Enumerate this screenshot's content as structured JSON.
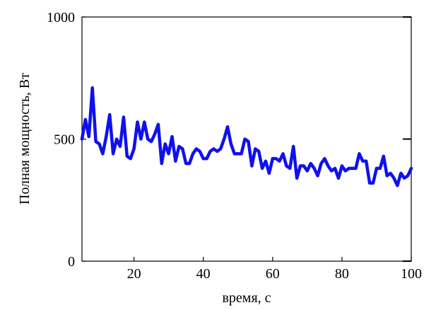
{
  "chart_data": {
    "type": "line",
    "xlabel": "время, с",
    "ylabel": "Полная мощность, Вт",
    "xlim": [
      5,
      100
    ],
    "ylim": [
      0,
      1000
    ],
    "x_ticks": [
      20,
      40,
      60,
      80,
      100
    ],
    "y_ticks": [
      0,
      500,
      1000
    ],
    "x_tick_labels": [
      "20",
      "40",
      "60",
      "80",
      "100"
    ],
    "y_tick_labels": [
      "0",
      "500",
      "1000"
    ],
    "grid": false,
    "series": [
      {
        "color": "#1010ee",
        "x": [
          5,
          6,
          7,
          8,
          9,
          10,
          11,
          12,
          13,
          14,
          15,
          16,
          17,
          18,
          19,
          20,
          21,
          22,
          23,
          24,
          25,
          26,
          27,
          28,
          29,
          30,
          31,
          32,
          33,
          34,
          35,
          36,
          37,
          38,
          39,
          40,
          41,
          42,
          43,
          44,
          45,
          46,
          47,
          48,
          49,
          50,
          51,
          52,
          53,
          54,
          55,
          56,
          57,
          58,
          59,
          60,
          61,
          62,
          63,
          64,
          65,
          66,
          67,
          68,
          69,
          70,
          71,
          72,
          73,
          74,
          75,
          76,
          77,
          78,
          79,
          80,
          81,
          82,
          83,
          84,
          85,
          86,
          87,
          88,
          89,
          90,
          91,
          92,
          93,
          94,
          95,
          96,
          97,
          98,
          99,
          100
        ],
        "y": [
          500,
          580,
          510,
          710,
          490,
          480,
          440,
          510,
          600,
          440,
          500,
          470,
          590,
          430,
          420,
          460,
          570,
          500,
          570,
          500,
          490,
          520,
          560,
          400,
          480,
          440,
          510,
          410,
          470,
          460,
          400,
          400,
          440,
          460,
          450,
          420,
          420,
          450,
          460,
          450,
          460,
          500,
          550,
          480,
          440,
          440,
          440,
          500,
          490,
          390,
          460,
          450,
          380,
          410,
          360,
          420,
          420,
          410,
          440,
          390,
          380,
          470,
          340,
          390,
          390,
          370,
          400,
          380,
          350,
          400,
          420,
          390,
          370,
          380,
          340,
          390,
          370,
          380,
          380,
          380,
          440,
          410,
          410,
          320,
          320,
          380,
          380,
          430,
          350,
          360,
          340,
          310,
          360,
          340,
          350,
          380
        ]
      }
    ]
  }
}
